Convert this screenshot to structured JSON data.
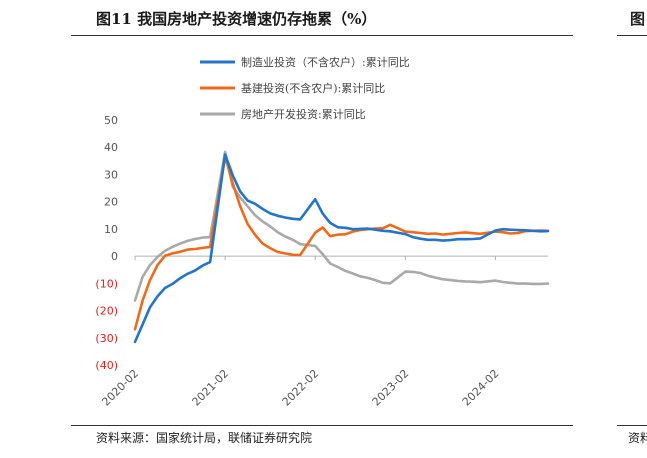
{
  "figure": {
    "title": "图11 我国房地产投资增速仍存拖累（%）",
    "source": "资料来源：国家统计局，联储证券研究院",
    "right_edge_title_fragment": "图",
    "right_edge_source_fragment": "资料"
  },
  "colors": {
    "manufacturing": "#2474c9",
    "infrastructure": "#ef6a1c",
    "real_estate": "#a9a9a9",
    "negative_tick": "#e02020",
    "tick": "#555555"
  },
  "chart_data": {
    "type": "line",
    "title": "",
    "xlabel": "",
    "ylabel": "",
    "ylim": [
      -40,
      50
    ],
    "yticks": [
      50,
      40,
      30,
      20,
      10,
      0,
      -10,
      -20,
      -30,
      -40
    ],
    "ytick_labels": [
      "50",
      "40",
      "30",
      "20",
      "10",
      "0",
      "(10)",
      "(20)",
      "(30)",
      "(40)"
    ],
    "xticks": [
      "2020-02",
      "2021-02",
      "2022-02",
      "2023-02",
      "2024-02"
    ],
    "xlim": [
      "2020-02",
      "2024-09"
    ],
    "grid": false,
    "legend_position": "top-center",
    "series": [
      {
        "name": "制造业投资（不含农户）:累计同比",
        "x": [
          "2020-02",
          "2020-03",
          "2020-04",
          "2020-05",
          "2020-06",
          "2020-07",
          "2020-08",
          "2020-09",
          "2020-10",
          "2020-11",
          "2020-12",
          "2021-02",
          "2021-03",
          "2021-04",
          "2021-05",
          "2021-06",
          "2021-07",
          "2021-08",
          "2021-09",
          "2021-10",
          "2021-11",
          "2021-12",
          "2022-02",
          "2022-03",
          "2022-04",
          "2022-05",
          "2022-06",
          "2022-07",
          "2022-08",
          "2022-09",
          "2022-10",
          "2022-11",
          "2022-12",
          "2023-02",
          "2023-03",
          "2023-04",
          "2023-05",
          "2023-06",
          "2023-07",
          "2023-08",
          "2023-09",
          "2023-10",
          "2023-11",
          "2023-12",
          "2024-02",
          "2024-03",
          "2024-04",
          "2024-05",
          "2024-06",
          "2024-07",
          "2024-08",
          "2024-09"
        ],
        "values": [
          -31.5,
          -25.2,
          -18.8,
          -14.8,
          -11.7,
          -10.2,
          -8.1,
          -6.5,
          -5.3,
          -3.5,
          -2.2,
          37.3,
          29.8,
          23.8,
          20.4,
          19.2,
          17.3,
          15.7,
          14.8,
          14.2,
          13.7,
          13.5,
          20.9,
          15.6,
          12.2,
          10.6,
          10.4,
          9.9,
          10.0,
          10.1,
          9.7,
          9.3,
          9.1,
          8.1,
          7.0,
          6.4,
          6.0,
          6.0,
          5.7,
          5.9,
          6.2,
          6.2,
          6.3,
          6.5,
          9.4,
          9.9,
          9.7,
          9.6,
          9.5,
          9.3,
          9.1,
          9.2
        ]
      },
      {
        "name": "基建投资(不含农户):累计同比",
        "x": [
          "2020-02",
          "2020-03",
          "2020-04",
          "2020-05",
          "2020-06",
          "2020-07",
          "2020-08",
          "2020-09",
          "2020-10",
          "2020-11",
          "2020-12",
          "2021-02",
          "2021-03",
          "2021-04",
          "2021-05",
          "2021-06",
          "2021-07",
          "2021-08",
          "2021-09",
          "2021-10",
          "2021-11",
          "2021-12",
          "2022-02",
          "2022-03",
          "2022-04",
          "2022-05",
          "2022-06",
          "2022-07",
          "2022-08",
          "2022-09",
          "2022-10",
          "2022-11",
          "2022-12",
          "2023-02",
          "2023-03",
          "2023-04",
          "2023-05",
          "2023-06",
          "2023-07",
          "2023-08",
          "2023-09",
          "2023-10",
          "2023-11",
          "2023-12",
          "2024-02",
          "2024-03",
          "2024-04",
          "2024-05",
          "2024-06",
          "2024-07",
          "2024-08",
          "2024-09"
        ],
        "values": [
          -26.9,
          -16.4,
          -8.8,
          -3.3,
          0.1,
          1.0,
          1.6,
          2.4,
          2.6,
          3.0,
          3.4,
          36.6,
          26.9,
          18.4,
          11.8,
          7.8,
          4.6,
          2.9,
          1.5,
          1.0,
          0.5,
          0.4,
          8.6,
          10.5,
          7.3,
          7.9,
          8.0,
          9.0,
          9.6,
          9.9,
          10.1,
          10.2,
          11.5,
          9.0,
          8.8,
          8.5,
          8.2,
          8.3,
          7.9,
          8.2,
          8.5,
          8.7,
          8.4,
          8.2,
          9.0,
          8.8,
          8.3,
          8.5,
          9.2,
          9.3,
          9.4,
          9.3
        ]
      },
      {
        "name": "房地产开发投资:累计同比",
        "x": [
          "2020-02",
          "2020-03",
          "2020-04",
          "2020-05",
          "2020-06",
          "2020-07",
          "2020-08",
          "2020-09",
          "2020-10",
          "2020-11",
          "2020-12",
          "2021-02",
          "2021-03",
          "2021-04",
          "2021-05",
          "2021-06",
          "2021-07",
          "2021-08",
          "2021-09",
          "2021-10",
          "2021-11",
          "2021-12",
          "2022-02",
          "2022-03",
          "2022-04",
          "2022-05",
          "2022-06",
          "2022-07",
          "2022-08",
          "2022-09",
          "2022-10",
          "2022-11",
          "2022-12",
          "2023-02",
          "2023-03",
          "2023-04",
          "2023-05",
          "2023-06",
          "2023-07",
          "2023-08",
          "2023-09",
          "2023-10",
          "2023-11",
          "2023-12",
          "2024-02",
          "2024-03",
          "2024-04",
          "2024-05",
          "2024-06",
          "2024-07",
          "2024-08",
          "2024-09"
        ],
        "values": [
          -16.3,
          -7.7,
          -3.3,
          -0.3,
          1.9,
          3.4,
          4.6,
          5.6,
          6.3,
          6.8,
          7.0,
          38.3,
          25.6,
          21.6,
          18.3,
          15.0,
          12.7,
          10.9,
          8.8,
          7.2,
          6.0,
          4.4,
          3.7,
          0.7,
          -2.7,
          -4.0,
          -5.4,
          -6.4,
          -7.4,
          -8.0,
          -8.8,
          -9.8,
          -10.0,
          -5.7,
          -5.8,
          -6.2,
          -7.2,
          -7.9,
          -8.5,
          -8.8,
          -9.1,
          -9.3,
          -9.4,
          -9.6,
          -9.0,
          -9.5,
          -9.8,
          -10.1,
          -10.1,
          -10.2,
          -10.2,
          -10.1
        ]
      }
    ]
  }
}
